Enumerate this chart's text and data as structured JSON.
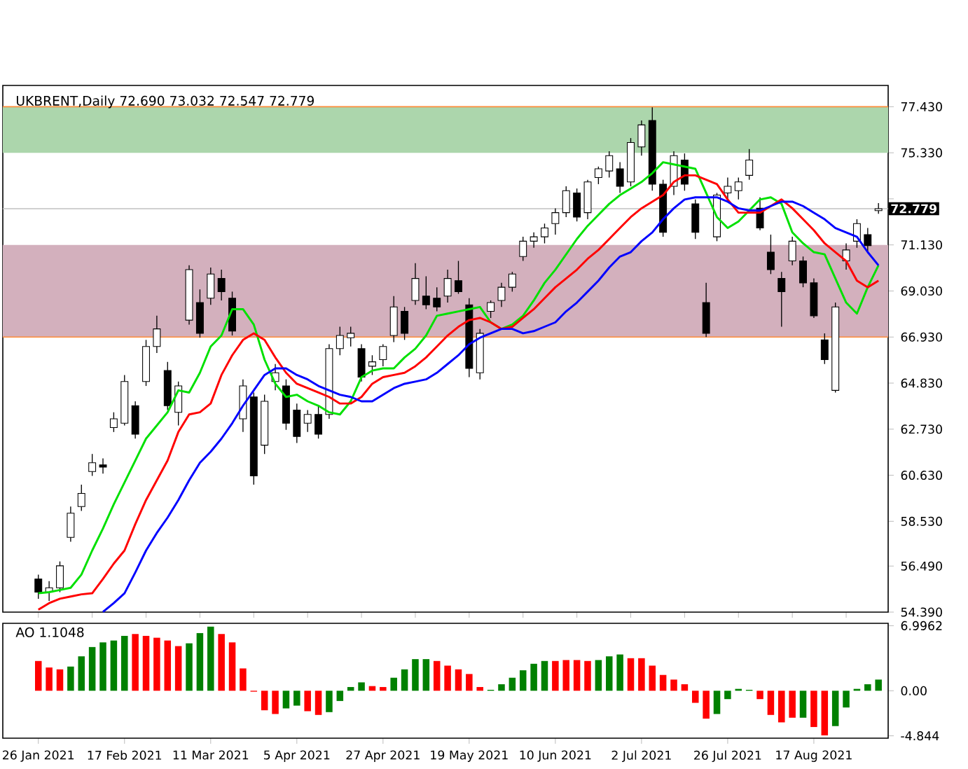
{
  "chart_data": [
    {
      "type": "candlestick",
      "title": "UKBRENT,Daily  72.690 73.032 72.547 72.779",
      "categories": [
        null,
        null,
        null,
        null,
        null,
        null,
        null,
        null,
        null,
        null,
        null,
        null,
        null,
        null,
        null,
        null,
        null,
        null,
        null,
        null,
        null,
        null,
        null,
        null,
        null,
        null,
        null,
        null,
        null,
        null,
        null,
        null,
        null,
        null,
        null,
        null,
        null,
        null,
        null,
        null,
        null,
        null,
        null,
        null,
        null,
        null,
        null,
        null,
        null,
        null,
        null,
        null,
        null,
        null,
        null,
        null,
        null,
        null,
        null,
        null,
        null,
        null,
        null,
        null,
        null,
        null,
        null,
        null,
        null,
        null,
        null,
        null,
        null,
        null,
        null,
        null,
        null,
        null,
        null
      ],
      "ohlc": [
        [
          55.9,
          56.1,
          55.0,
          55.3
        ],
        [
          55.3,
          55.8,
          54.9,
          55.5
        ],
        [
          55.5,
          56.7,
          55.3,
          56.5
        ],
        [
          57.8,
          59.2,
          57.6,
          58.9
        ],
        [
          59.2,
          60.2,
          59.0,
          59.8
        ],
        [
          60.8,
          61.6,
          60.6,
          61.2
        ],
        [
          61.1,
          61.4,
          60.7,
          61.0
        ],
        [
          62.8,
          63.5,
          62.6,
          63.2
        ],
        [
          63.0,
          65.2,
          62.9,
          64.9
        ],
        [
          63.8,
          64.0,
          62.3,
          62.5
        ],
        [
          64.9,
          66.8,
          64.7,
          66.5
        ],
        [
          66.5,
          67.9,
          66.2,
          67.3
        ],
        [
          65.4,
          65.8,
          63.6,
          63.8
        ],
        [
          63.5,
          64.9,
          62.9,
          64.7
        ],
        [
          67.7,
          70.2,
          67.5,
          70.0
        ],
        [
          68.5,
          69.1,
          66.9,
          67.1
        ],
        [
          68.7,
          70.1,
          68.4,
          69.8
        ],
        [
          69.6,
          70.0,
          68.6,
          69.0
        ],
        [
          68.7,
          69.0,
          67.0,
          67.2
        ],
        [
          63.2,
          65.0,
          62.6,
          64.7
        ],
        [
          64.2,
          64.4,
          60.2,
          60.6
        ],
        [
          62.0,
          64.3,
          61.6,
          64.0
        ],
        [
          64.9,
          65.7,
          64.5,
          65.3
        ],
        [
          64.7,
          65.0,
          62.7,
          63.0
        ],
        [
          63.6,
          63.9,
          62.1,
          62.4
        ],
        [
          63.0,
          63.6,
          62.6,
          63.4
        ],
        [
          63.4,
          63.8,
          62.3,
          62.5
        ],
        [
          63.4,
          66.6,
          63.2,
          66.4
        ],
        [
          66.4,
          67.4,
          66.1,
          67.0
        ],
        [
          66.9,
          67.4,
          66.5,
          67.1
        ],
        [
          66.4,
          66.6,
          64.9,
          65.1
        ],
        [
          65.6,
          66.1,
          65.2,
          65.8
        ],
        [
          65.9,
          66.6,
          65.6,
          66.5
        ],
        [
          67.0,
          68.8,
          66.7,
          68.3
        ],
        [
          68.1,
          68.3,
          66.8,
          67.1
        ],
        [
          68.6,
          70.3,
          68.4,
          69.6
        ],
        [
          68.8,
          69.7,
          68.2,
          68.4
        ],
        [
          68.7,
          69.2,
          68.1,
          68.3
        ],
        [
          68.8,
          70.0,
          68.5,
          69.6
        ],
        [
          69.5,
          70.4,
          68.9,
          69.0
        ],
        [
          68.4,
          68.7,
          65.1,
          65.5
        ],
        [
          65.3,
          67.3,
          65.0,
          67.1
        ],
        [
          68.1,
          68.6,
          67.8,
          68.5
        ],
        [
          68.6,
          69.4,
          68.3,
          69.2
        ],
        [
          69.2,
          69.9,
          69.0,
          69.8
        ],
        [
          70.6,
          71.5,
          70.4,
          71.3
        ],
        [
          71.3,
          71.7,
          71.0,
          71.5
        ],
        [
          71.5,
          72.1,
          71.2,
          71.9
        ],
        [
          72.1,
          72.8,
          71.6,
          72.6
        ],
        [
          72.6,
          73.8,
          72.4,
          73.6
        ],
        [
          73.5,
          73.7,
          72.2,
          72.4
        ],
        [
          72.6,
          74.1,
          72.3,
          74.0
        ],
        [
          74.2,
          74.7,
          73.9,
          74.6
        ],
        [
          74.5,
          75.4,
          74.2,
          75.2
        ],
        [
          74.6,
          74.9,
          73.5,
          73.8
        ],
        [
          74.0,
          76.0,
          73.8,
          75.8
        ],
        [
          75.6,
          76.8,
          75.2,
          76.6
        ],
        [
          76.8,
          77.4,
          73.6,
          73.9
        ],
        [
          73.9,
          74.1,
          71.5,
          71.7
        ],
        [
          73.8,
          75.4,
          73.4,
          75.2
        ],
        [
          75.0,
          75.3,
          73.6,
          73.9
        ],
        [
          73.0,
          73.2,
          71.4,
          71.7
        ],
        [
          68.5,
          69.4,
          66.93,
          67.1
        ],
        [
          71.5,
          73.5,
          71.3,
          73.4
        ],
        [
          73.5,
          74.2,
          73.1,
          73.8
        ],
        [
          73.6,
          74.2,
          73.2,
          74.0
        ],
        [
          74.3,
          75.5,
          74.1,
          75.0
        ],
        [
          72.8,
          73.3,
          71.8,
          71.9
        ],
        [
          70.8,
          71.6,
          69.8,
          70.0
        ],
        [
          69.6,
          69.9,
          67.4,
          69.0
        ],
        [
          70.4,
          71.5,
          70.2,
          71.3
        ],
        [
          70.4,
          70.6,
          69.2,
          69.4
        ],
        [
          69.4,
          69.6,
          67.8,
          67.9
        ],
        [
          66.8,
          67.1,
          65.7,
          65.9
        ],
        [
          64.5,
          68.5,
          64.4,
          68.3
        ],
        [
          70.4,
          71.2,
          70.0,
          70.9
        ],
        [
          71.3,
          72.3,
          71.0,
          72.1
        ],
        [
          71.6,
          71.9,
          70.8,
          71.1
        ],
        [
          72.69,
          73.032,
          72.547,
          72.779
        ]
      ],
      "series": [
        {
          "type": "line",
          "color": "#00e000",
          "values": [
            55.25,
            55.3,
            55.4,
            55.5,
            56.1,
            57.2,
            58.2,
            59.3,
            60.3,
            61.3,
            62.3,
            62.9,
            63.5,
            64.5,
            64.4,
            65.3,
            66.5,
            67.0,
            68.2,
            68.2,
            67.5,
            65.9,
            64.8,
            64.2,
            64.3,
            64.0,
            63.8,
            63.5,
            63.4,
            64.0,
            65.1,
            65.4,
            65.5,
            65.5,
            66.0,
            66.4,
            67.0,
            67.9,
            68.0,
            68.1,
            68.2,
            68.3,
            67.6,
            67.3,
            67.5,
            67.9,
            68.6,
            69.4,
            70.0,
            70.7,
            71.4,
            72.0,
            72.5,
            73.0,
            73.4,
            73.7,
            74.0,
            74.4,
            74.9,
            74.8,
            74.7,
            74.6,
            73.5,
            72.4,
            71.9,
            72.2,
            72.7,
            73.2,
            73.3,
            73.0,
            71.7,
            71.2,
            70.8,
            70.7,
            69.6,
            68.5,
            68.0,
            69.2,
            70.2
          ]
        },
        {
          "type": "line",
          "color": "#ff0000",
          "values": [
            54.5,
            54.8,
            55.0,
            55.1,
            55.2,
            55.25,
            55.9,
            56.6,
            57.2,
            58.4,
            59.5,
            60.4,
            61.3,
            62.6,
            63.4,
            63.5,
            63.9,
            65.2,
            66.1,
            66.8,
            67.1,
            66.8,
            66.0,
            65.3,
            64.8,
            64.6,
            64.4,
            64.2,
            63.9,
            63.9,
            64.2,
            64.8,
            65.1,
            65.2,
            65.3,
            65.6,
            66.0,
            66.5,
            67.0,
            67.4,
            67.7,
            67.8,
            67.6,
            67.3,
            67.4,
            67.8,
            68.2,
            68.7,
            69.2,
            69.6,
            70.0,
            70.5,
            70.9,
            71.4,
            71.9,
            72.4,
            72.8,
            73.1,
            73.4,
            74.0,
            74.3,
            74.3,
            74.1,
            73.9,
            73.2,
            72.6,
            72.6,
            72.6,
            72.9,
            73.2,
            72.8,
            72.3,
            71.8,
            71.2,
            70.8,
            70.4,
            69.5,
            69.2,
            69.5
          ]
        },
        {
          "type": "line",
          "color": "#0000ff",
          "values": [
            null,
            null,
            null,
            null,
            null,
            null,
            54.4,
            54.8,
            55.25,
            56.2,
            57.2,
            58.0,
            58.7,
            59.5,
            60.4,
            61.2,
            61.7,
            62.3,
            63.0,
            63.8,
            64.5,
            65.2,
            65.5,
            65.5,
            65.2,
            65.0,
            64.7,
            64.5,
            64.3,
            64.2,
            64.0,
            64.0,
            64.3,
            64.6,
            64.8,
            64.9,
            65.0,
            65.3,
            65.7,
            66.1,
            66.6,
            66.9,
            67.1,
            67.3,
            67.3,
            67.1,
            67.2,
            67.4,
            67.6,
            68.1,
            68.5,
            69.0,
            69.5,
            70.1,
            70.6,
            70.8,
            71.3,
            71.7,
            72.3,
            72.8,
            73.2,
            73.3,
            73.3,
            73.3,
            73.1,
            72.8,
            72.7,
            72.7,
            72.9,
            73.1,
            73.1,
            72.9,
            72.6,
            72.3,
            71.9,
            71.7,
            71.5,
            70.8,
            70.2
          ]
        }
      ],
      "ylim": [
        54.39,
        78.4
      ],
      "yticks": [
        {
          "value": 54.39,
          "label": "54.390"
        },
        {
          "value": 56.49,
          "label": "56.490"
        },
        {
          "value": 58.53,
          "label": "58.530"
        },
        {
          "value": 60.63,
          "label": "60.630"
        },
        {
          "value": 62.73,
          "label": "62.730"
        },
        {
          "value": 64.83,
          "label": "64.830"
        },
        {
          "value": 66.93,
          "label": "66.930"
        },
        {
          "value": 69.03,
          "label": "69.030"
        },
        {
          "value": 71.13,
          "label": "71.130"
        },
        {
          "value": 73.23,
          "label": null
        },
        {
          "value": 75.33,
          "label": "75.330"
        },
        {
          "value": 77.43,
          "label": "77.430"
        }
      ],
      "tick_labels": "y",
      "bands": [
        {
          "axis": "y",
          "from": 75.33,
          "to": 77.43,
          "color": "#acd6ac"
        },
        {
          "axis": "y",
          "from": 66.93,
          "to": 71.13,
          "color": "#d3b0bd"
        }
      ],
      "ref_lines": [
        {
          "axis": "y",
          "value": 77.43,
          "color": "#ff8c3a"
        },
        {
          "axis": "y",
          "value": 66.93,
          "color": "#ff8c3a"
        },
        {
          "axis": "y",
          "value": 72.779,
          "label": "72.779",
          "color": "#c0c0c0"
        }
      ]
    },
    {
      "type": "bar",
      "title": "AO 1.1048",
      "categories": [
        "26 Jan 2021",
        null,
        null,
        null,
        null,
        null,
        null,
        null,
        "17 Feb 2021",
        null,
        null,
        null,
        null,
        null,
        null,
        null,
        "11 Mar 2021",
        null,
        null,
        null,
        null,
        null,
        null,
        null,
        "5 Apr 2021",
        null,
        null,
        null,
        null,
        null,
        null,
        null,
        "27 Apr 2021",
        null,
        null,
        null,
        null,
        null,
        null,
        null,
        "19 May 2021",
        null,
        null,
        null,
        null,
        null,
        null,
        null,
        "10 Jun 2021",
        null,
        null,
        null,
        null,
        null,
        null,
        null,
        "2 Jul 2021",
        null,
        null,
        null,
        null,
        null,
        null,
        null,
        "26 Jul 2021",
        null,
        null,
        null,
        null,
        null,
        null,
        null,
        "17 Aug 2021",
        null,
        null,
        null,
        null,
        null,
        null
      ],
      "values": [
        3.2,
        2.5,
        2.3,
        2.6,
        3.7,
        4.7,
        5.2,
        5.4,
        5.9,
        6.1,
        5.9,
        5.7,
        5.4,
        4.8,
        5.1,
        6.2,
        6.9,
        6.1,
        5.2,
        2.4,
        -0.1,
        -2.1,
        -2.5,
        -1.9,
        -1.6,
        -2.2,
        -2.6,
        -2.3,
        -1.1,
        0.4,
        0.9,
        0.5,
        0.4,
        1.4,
        2.3,
        3.4,
        3.4,
        3.2,
        2.7,
        2.3,
        1.8,
        0.4,
        0.1,
        0.7,
        1.4,
        2.2,
        2.9,
        3.2,
        3.2,
        3.3,
        3.3,
        3.2,
        3.3,
        3.7,
        3.9,
        3.5,
        3.5,
        2.7,
        1.7,
        1.2,
        0.7,
        -1.3,
        -3.0,
        -2.5,
        -0.9,
        0.2,
        0.1,
        -0.9,
        -2.6,
        -3.4,
        -2.9,
        -2.9,
        -3.9,
        -4.8,
        -3.8,
        -1.8,
        0.2,
        0.7,
        1.2
      ],
      "colors": [
        "#ff0000",
        "#ff0000",
        "#ff0000",
        "#008000",
        "#008000",
        "#008000",
        "#008000",
        "#008000",
        "#008000",
        "#ff0000",
        "#ff0000",
        "#ff0000",
        "#ff0000",
        "#ff0000",
        "#008000",
        "#008000",
        "#008000",
        "#ff0000",
        "#ff0000",
        "#ff0000",
        "#ff0000",
        "#ff0000",
        "#ff0000",
        "#008000",
        "#008000",
        "#ff0000",
        "#ff0000",
        "#008000",
        "#008000",
        "#008000",
        "#008000",
        "#ff0000",
        "#ff0000",
        "#008000",
        "#008000",
        "#008000",
        "#008000",
        "#ff0000",
        "#ff0000",
        "#ff0000",
        "#ff0000",
        "#ff0000",
        "#008000",
        "#008000",
        "#008000",
        "#008000",
        "#008000",
        "#008000",
        "#ff0000",
        "#ff0000",
        "#ff0000",
        "#ff0000",
        "#008000",
        "#008000",
        "#008000",
        "#ff0000",
        "#ff0000",
        "#ff0000",
        "#ff0000",
        "#ff0000",
        "#ff0000",
        "#ff0000",
        "#ff0000",
        "#008000",
        "#008000",
        "#008000",
        "#008000",
        "#ff0000",
        "#ff0000",
        "#ff0000",
        "#ff0000",
        "#008000",
        "#ff0000",
        "#ff0000",
        "#008000",
        "#008000",
        "#008000",
        "#008000",
        "#008000"
      ],
      "ylim": [
        -5.1,
        7.25
      ],
      "yticks": [
        6.9962,
        {
          "value": 0,
          "label": "0.00"
        },
        -4.844
      ]
    }
  ]
}
